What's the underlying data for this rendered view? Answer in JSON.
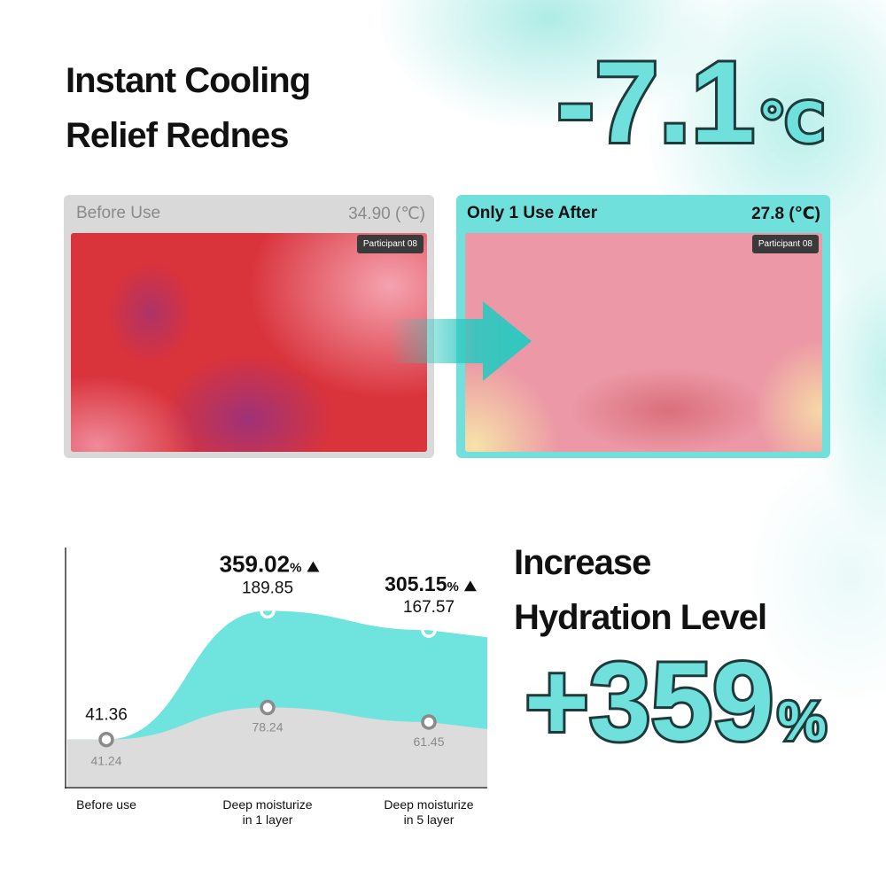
{
  "header": {
    "title_lines": [
      "Instant Cooling",
      "Relief Rednes"
    ],
    "big_stat": {
      "number": "-7.1",
      "unit": "℃"
    }
  },
  "comparison": {
    "before": {
      "label": "Before Use",
      "temperature": "34.90 (℃)",
      "participant": "Participant 08"
    },
    "after": {
      "label": "Only 1 Use After",
      "temperature": "27.8 (℃)",
      "participant": "Participant 08"
    }
  },
  "hydration": {
    "title_lines": [
      "Increase",
      "Hydration Level"
    ],
    "big_stat": {
      "number": "+359",
      "unit": "%"
    }
  },
  "chart_data": {
    "type": "area",
    "categories": [
      "Before use",
      "Deep moisturize\nin 1 layer",
      "Deep moisturize\nin 5 layer"
    ],
    "series": [
      {
        "color": "#6fe3de",
        "values": [
          41.36,
          189.85,
          167.57
        ]
      },
      {
        "color": "#dcdcdc",
        "values": [
          41.24,
          78.24,
          61.45
        ]
      }
    ],
    "increase_labels": [
      null,
      {
        "number": 359.02,
        "unit": "%"
      },
      {
        "number": 305.15,
        "unit": "%"
      }
    ],
    "ylim": [
      0,
      220
    ]
  }
}
